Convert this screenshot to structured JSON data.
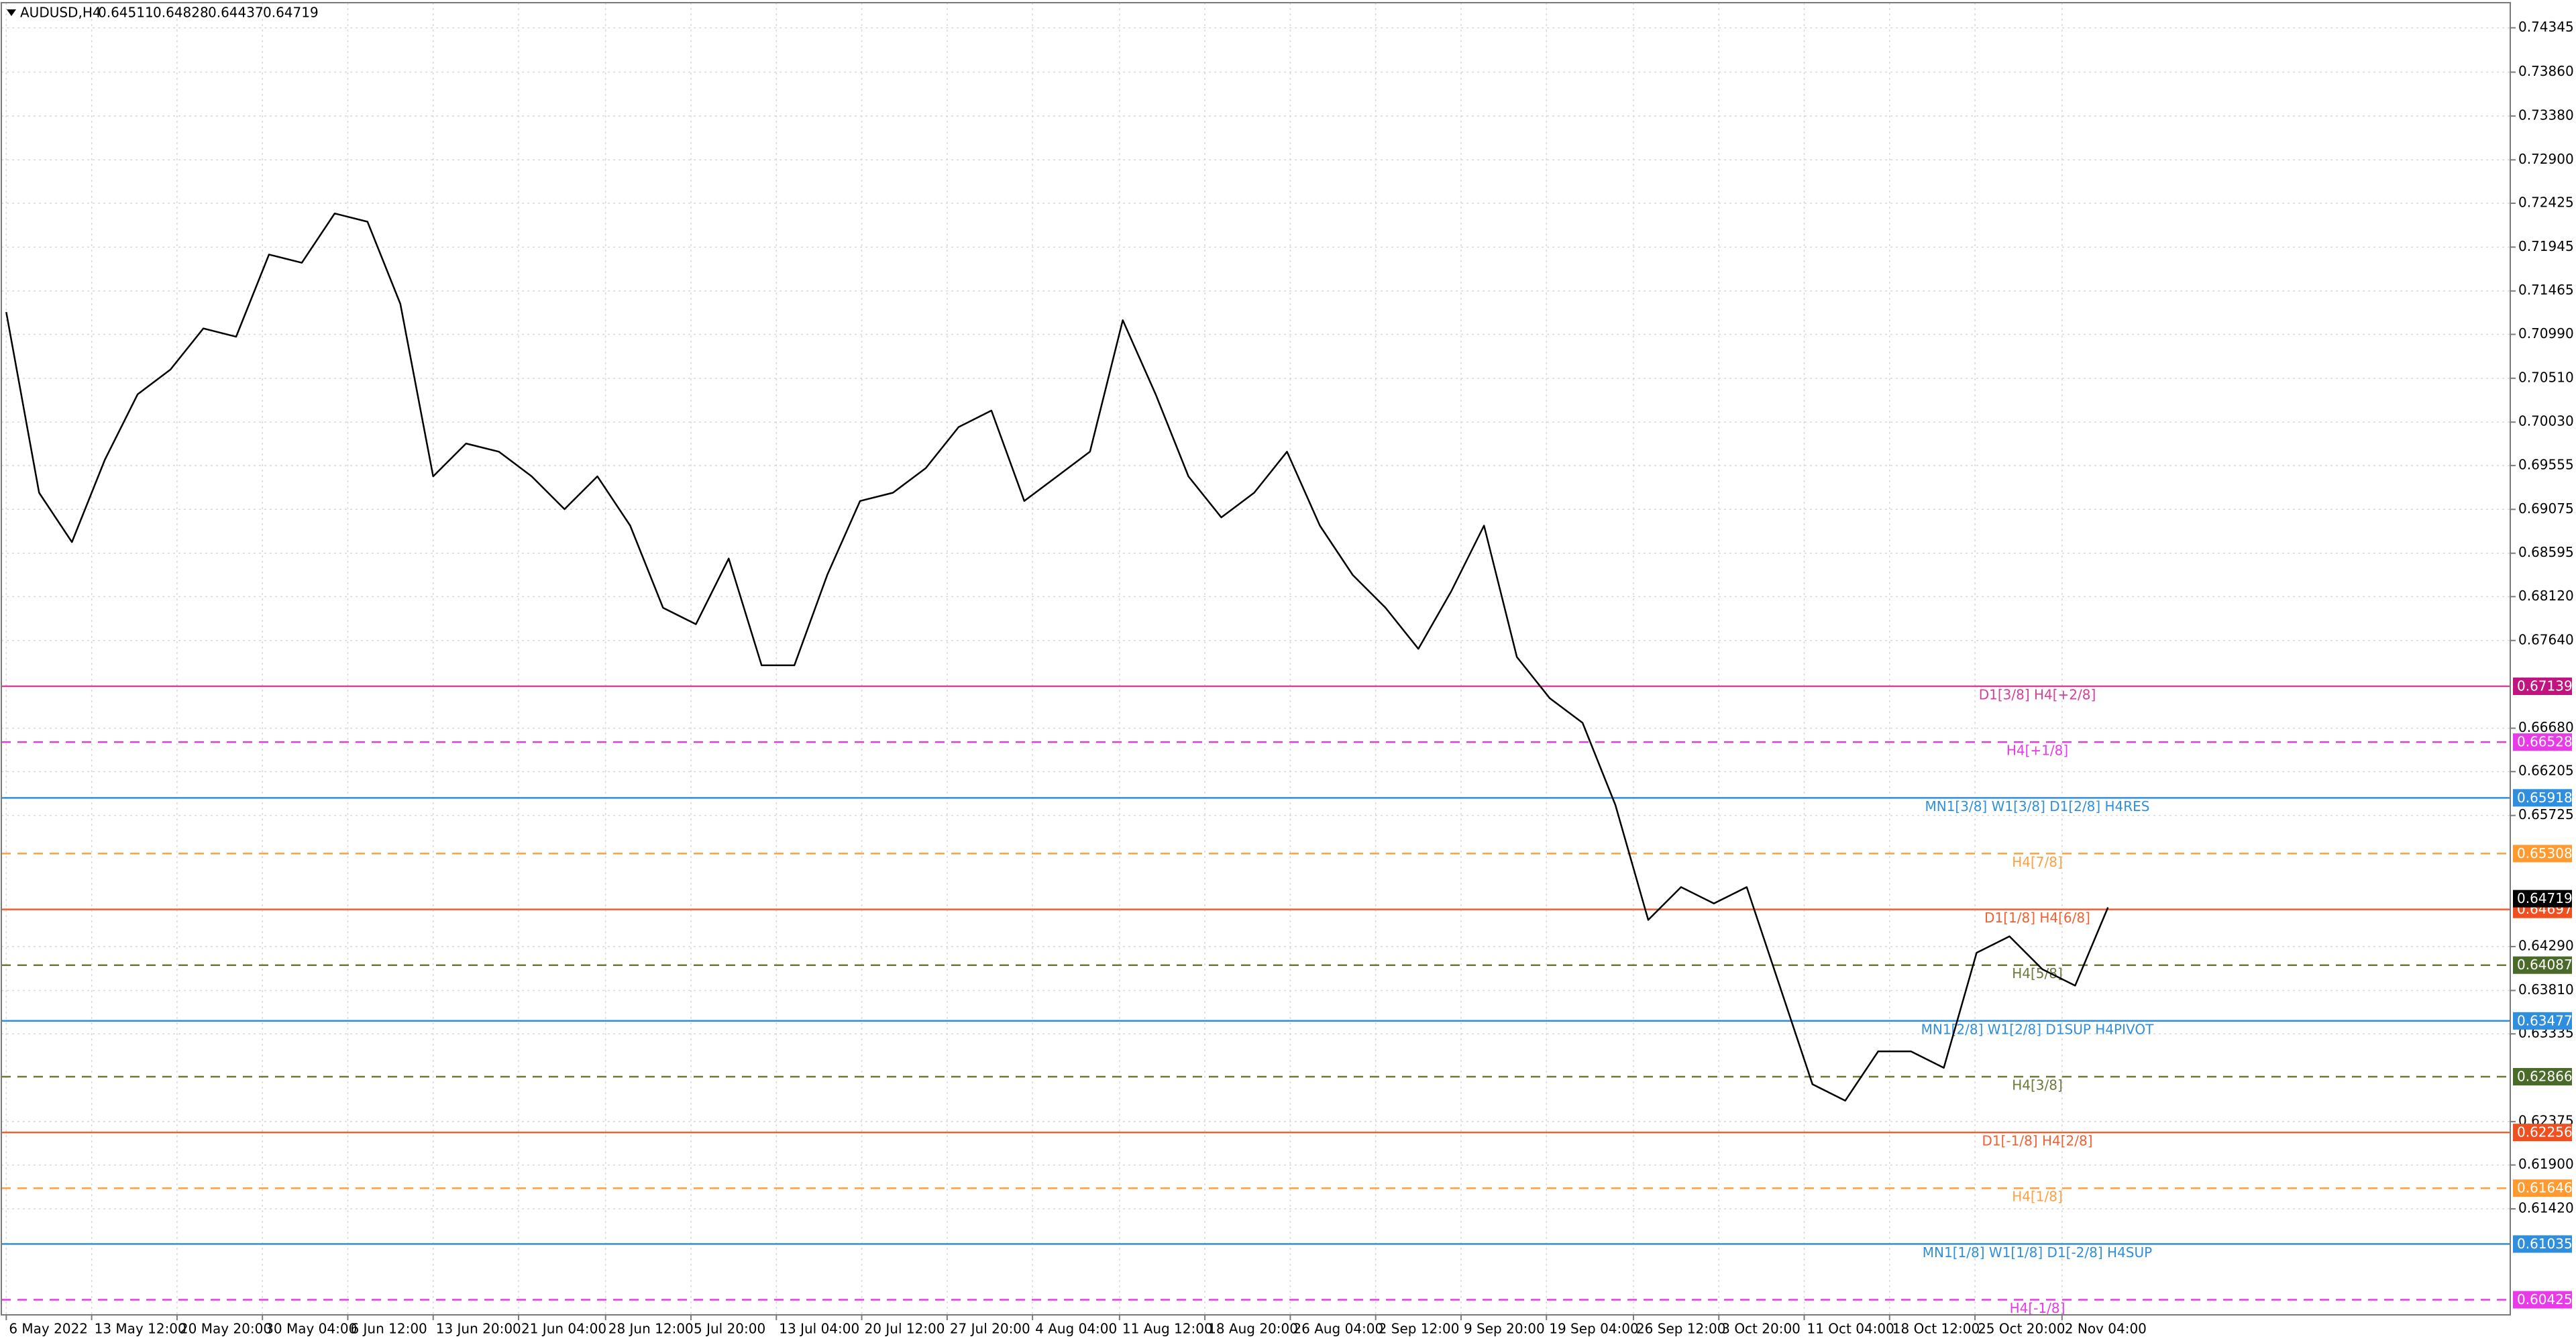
{
  "chart_data": {
    "type": "line",
    "symbol": "AUDUSD,H4",
    "ohlc": [
      0.64511,
      0.64828,
      0.64437,
      0.64719
    ],
    "grid": true,
    "ylim": [
      0.6026,
      0.7462
    ],
    "yticks": [
      0.74345,
      {
        "value": 0.7386,
        "label": "0.73860"
      },
      {
        "value": 0.7338,
        "label": "0.73380"
      },
      {
        "value": 0.729,
        "label": "0.72900"
      },
      0.72425,
      0.71945,
      0.71465,
      {
        "value": 0.7099,
        "label": "0.70990"
      },
      {
        "value": 0.7051,
        "label": "0.70510"
      },
      {
        "value": 0.7003,
        "label": "0.70030"
      },
      0.69555,
      0.69075,
      0.68595,
      {
        "value": 0.6812,
        "label": "0.68120"
      },
      {
        "value": 0.6764,
        "label": "0.67640"
      },
      {
        "value": 0.6668,
        "label": "0.66680"
      },
      0.66205,
      0.65725,
      {
        "value": 0.6429,
        "label": "0.64290"
      },
      {
        "value": 0.6381,
        "label": "0.63810"
      },
      0.63335,
      0.62375,
      {
        "value": 0.619,
        "label": "0.61900"
      },
      {
        "value": 0.6142,
        "label": "0.61420"
      }
    ],
    "xlim": [
      -0.15,
      76.25
    ],
    "xticks": [
      {
        "value": 0,
        "label": "6 May 2022"
      },
      {
        "value": 2.6,
        "label": "13 May 12:00"
      },
      {
        "value": 5.2,
        "label": "20 May 20:00"
      },
      {
        "value": 7.8,
        "label": "30 May 04:00"
      },
      {
        "value": 10.4,
        "label": "6 Jun 12:00"
      },
      {
        "value": 13,
        "label": "13 Jun 20:00"
      },
      {
        "value": 15.6,
        "label": "21 Jun 04:00"
      },
      {
        "value": 18.25,
        "label": "28 Jun 12:00"
      },
      {
        "value": 20.85,
        "label": "5 Jul 20:00"
      },
      {
        "value": 23.45,
        "label": "13 Jul 04:00"
      },
      {
        "value": 26.05,
        "label": "20 Jul 12:00"
      },
      {
        "value": 28.65,
        "label": "27 Jul 20:00"
      },
      {
        "value": 31.25,
        "label": "4 Aug 04:00"
      },
      {
        "value": 33.9,
        "label": "11 Aug 12:00"
      },
      {
        "value": 36.5,
        "label": "18 Aug 20:00"
      },
      {
        "value": 39.1,
        "label": "26 Aug 04:00"
      },
      {
        "value": 41.7,
        "label": "2 Sep 12:00"
      },
      {
        "value": 44.3,
        "label": "9 Sep 20:00"
      },
      {
        "value": 46.9,
        "label": "19 Sep 04:00"
      },
      {
        "value": 49.55,
        "label": "26 Sep 12:00"
      },
      {
        "value": 52.15,
        "label": "3 Oct 20:00"
      },
      {
        "value": 54.75,
        "label": "11 Oct 04:00"
      },
      {
        "value": 57.35,
        "label": "18 Oct 12:00"
      },
      {
        "value": 59.95,
        "label": "25 Oct 20:00"
      },
      {
        "value": 62.6,
        "label": "2 Nov 04:00"
      }
    ],
    "series": [
      {
        "color": "#000000",
        "values": [
          0.71234,
          0.69257,
          0.68717,
          0.69616,
          0.70335,
          0.70605,
          0.71055,
          0.70965,
          0.71864,
          0.71774,
          0.72313,
          0.72223,
          0.71324,
          0.69436,
          0.69796,
          0.69706,
          0.69436,
          0.69077,
          0.69436,
          0.68897,
          0.67998,
          0.67818,
          0.68537,
          0.67369,
          0.67369,
          0.68358,
          0.69167,
          0.69257,
          0.69526,
          0.69976,
          0.70156,
          0.69167,
          0.69436,
          0.69706,
          0.71145,
          0.70335,
          0.69436,
          0.68987,
          0.69257,
          0.69706,
          0.68897,
          0.68358,
          0.67998,
          0.67549,
          0.68178,
          0.68897,
          0.67459,
          0.67009,
          0.66739,
          0.6584,
          0.64582,
          0.64941,
          0.64762,
          0.64941,
          0.63863,
          0.62784,
          0.62604,
          0.63143,
          0.63143,
          0.62964,
          0.64222,
          0.64402,
          0.64042,
          0.63863,
          0.64719
        ]
      }
    ],
    "levels": [
      {
        "price": 0.67139,
        "label": "D1[3/8] H4[+2/8]",
        "color": "#d4409a",
        "box": "#c0157f",
        "dashed": false
      },
      {
        "price": 0.66528,
        "label": "H4[+1/8]",
        "color": "#e83ae8",
        "box": "#e83ae8",
        "dashed": true
      },
      {
        "price": 0.65918,
        "label": "MN1[3/8] W1[3/8] D1[2/8] H4RES",
        "color": "#2f8fde",
        "box": "#2f8fde",
        "dashed": false
      },
      {
        "price": 0.65308,
        "label": "H4[7/8]",
        "color": "#ffa040",
        "box": "#ff9a30",
        "dashed": true
      },
      {
        "price": 0.64697,
        "label": "D1[1/8] H4[6/8]",
        "color": "#f06030",
        "box": "#f05020",
        "dashed": false
      },
      {
        "price": 0.64087,
        "label": "H4[5/8]",
        "color": "#6b7a3a",
        "box": "#4a6a2a",
        "dashed": true
      },
      {
        "price": 0.63477,
        "label": "MN1[2/8] W1[2/8] D1SUP H4PIVOT",
        "color": "#2f8fde",
        "box": "#2f8fde",
        "dashed": false
      },
      {
        "price": 0.62866,
        "label": "H4[3/8]",
        "color": "#6b7a3a",
        "box": "#4a6a2a",
        "dashed": true
      },
      {
        "price": 0.62256,
        "label": "D1[-1/8] H4[2/8]",
        "color": "#f06030",
        "box": "#f05020",
        "dashed": false
      },
      {
        "price": 0.61646,
        "label": "H4[1/8]",
        "color": "#ffa040",
        "box": "#ff9a30",
        "dashed": true
      },
      {
        "price": 0.61035,
        "label": "MN1[1/8] W1[1/8] D1[-2/8] H4SUP",
        "color": "#2f8fde",
        "box": "#2f8fde",
        "dashed": false
      },
      {
        "price": 0.60425,
        "label": "H4[-1/8]",
        "color": "#e83ae8",
        "box": "#e83ae8",
        "dashed": true
      }
    ]
  }
}
